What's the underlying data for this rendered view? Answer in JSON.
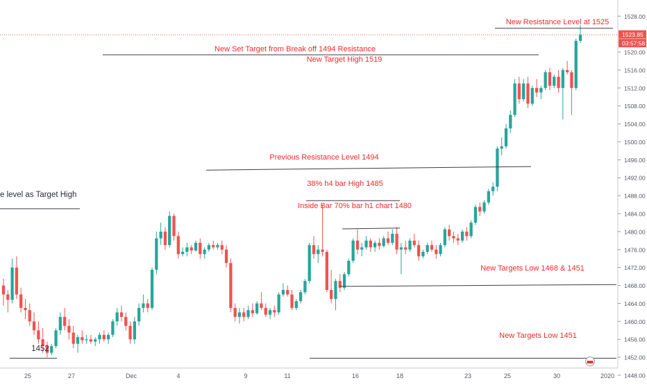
{
  "chart_data": {
    "type": "candlestick",
    "title": "",
    "up_color": "#26a69a",
    "down_color": "#ef5350",
    "annotation_color": "#ef2b2b",
    "y_ticks": [
      1448.0,
      1452.0,
      1456.0,
      1460.0,
      1464.0,
      1468.0,
      1472.0,
      1476.0,
      1480.0,
      1484.0,
      1488.0,
      1492.0,
      1496.0,
      1500.0,
      1504.0,
      1508.0,
      1512.0,
      1516.0,
      1520.0,
      1528.0
    ],
    "ylim": [
      1446.6,
      1531.6
    ],
    "x_ticks": [
      "25",
      "27",
      "Dec",
      "4",
      "9",
      "11",
      "16",
      "18",
      "23",
      "25",
      "30",
      "2020"
    ],
    "last_price": "1523.85",
    "countdown": "03:57:58",
    "last_price_value": 1523.85,
    "annotations": [
      {
        "text": "New Resistance Level at 1525",
        "kind": "label"
      },
      {
        "text": "New Set Target from Break off 1494 Resistance",
        "kind": "label"
      },
      {
        "text": "New Target High 1519",
        "kind": "label"
      },
      {
        "text": "Previous Resistance Level 1494",
        "kind": "label"
      },
      {
        "text": "38% h4 bar High 1485",
        "kind": "label"
      },
      {
        "text": "Inside Bar 70% bar h1 chart 1480",
        "kind": "label"
      },
      {
        "text": "New Targets Low 1468 & 1451",
        "kind": "label"
      },
      {
        "text": "New Targets Low 1451",
        "kind": "label"
      },
      {
        "text": "1452",
        "kind": "label"
      },
      {
        "text": "e level as Target High",
        "kind": "label"
      }
    ],
    "trend_lines": [
      {
        "name": "resistance-1525",
        "y1": 1525.3,
        "y2": 1525.3
      },
      {
        "name": "set-target-1519",
        "y1": 1519.4,
        "y2": 1519.4
      },
      {
        "name": "previous-resistance-1494",
        "y1": 1493.7,
        "y2": 1494.5
      },
      {
        "name": "h4-bar-high-1485",
        "y1": 1486.9,
        "y2": 1486.9
      },
      {
        "name": "inside-bar-1480",
        "y1": 1480.6,
        "y2": 1480.8
      },
      {
        "name": "targets-low-1468",
        "y1": 1467.8,
        "y2": 1468.2
      },
      {
        "name": "targets-low-1451",
        "y1": 1451.8,
        "y2": 1451.8
      },
      {
        "name": "low-1452",
        "y1": 1451.8,
        "y2": 1451.8
      },
      {
        "name": "target-high-left",
        "y1": 1485.1,
        "y2": 1485.1
      }
    ],
    "candles": [
      [
        1468.0,
        1469.5,
        1463.5,
        1466.0
      ],
      [
        1466.0,
        1467.0,
        1462.0,
        1464.8
      ],
      [
        1464.8,
        1474.0,
        1464.0,
        1472.0
      ],
      [
        1472.0,
        1474.5,
        1465.0,
        1466.0
      ],
      [
        1466.0,
        1467.5,
        1462.0,
        1463.0
      ],
      [
        1463.0,
        1465.0,
        1460.5,
        1462.5
      ],
      [
        1462.5,
        1464.0,
        1459.0,
        1460.0
      ],
      [
        1460.0,
        1462.0,
        1457.0,
        1458.0
      ],
      [
        1458.0,
        1460.0,
        1455.0,
        1456.0
      ],
      [
        1456.0,
        1458.5,
        1453.0,
        1454.5
      ],
      [
        1454.5,
        1455.5,
        1452.0,
        1453.0
      ],
      [
        1453.0,
        1455.0,
        1452.5,
        1454.5
      ],
      [
        1454.5,
        1458.5,
        1454.0,
        1458.0
      ],
      [
        1458.0,
        1462.0,
        1457.0,
        1461.0
      ],
      [
        1461.0,
        1463.0,
        1458.0,
        1459.0
      ],
      [
        1459.0,
        1460.5,
        1456.0,
        1457.5
      ],
      [
        1457.5,
        1459.0,
        1454.0,
        1455.0
      ],
      [
        1455.0,
        1457.0,
        1453.0,
        1456.5
      ],
      [
        1456.5,
        1458.0,
        1455.0,
        1455.8
      ],
      [
        1455.8,
        1457.0,
        1455.0,
        1456.0
      ],
      [
        1456.0,
        1457.0,
        1455.0,
        1455.5
      ],
      [
        1455.5,
        1456.5,
        1454.5,
        1456.0
      ],
      [
        1456.0,
        1457.5,
        1455.0,
        1457.0
      ],
      [
        1457.0,
        1458.0,
        1455.5,
        1456.0
      ],
      [
        1456.0,
        1457.5,
        1455.0,
        1457.0
      ],
      [
        1457.0,
        1460.5,
        1456.5,
        1460.0
      ],
      [
        1460.0,
        1463.0,
        1459.0,
        1462.0
      ],
      [
        1462.0,
        1463.5,
        1460.0,
        1461.0
      ],
      [
        1461.0,
        1462.0,
        1458.0,
        1459.0
      ],
      [
        1459.0,
        1460.0,
        1455.0,
        1456.0
      ],
      [
        1456.0,
        1461.0,
        1455.0,
        1460.0
      ],
      [
        1460.0,
        1464.0,
        1459.0,
        1463.0
      ],
      [
        1463.0,
        1466.0,
        1462.0,
        1464.0
      ],
      [
        1464.0,
        1465.0,
        1462.0,
        1463.0
      ],
      [
        1463.0,
        1472.0,
        1462.5,
        1471.5
      ],
      [
        1471.5,
        1480.0,
        1470.5,
        1478.5
      ],
      [
        1478.5,
        1482.0,
        1477.0,
        1480.0
      ],
      [
        1480.0,
        1481.0,
        1476.0,
        1477.0
      ],
      [
        1477.0,
        1484.5,
        1476.5,
        1483.5
      ],
      [
        1483.5,
        1484.0,
        1478.0,
        1479.0
      ],
      [
        1479.0,
        1480.0,
        1474.0,
        1475.0
      ],
      [
        1475.0,
        1476.5,
        1474.5,
        1475.5
      ],
      [
        1475.5,
        1477.5,
        1474.5,
        1476.5
      ],
      [
        1476.5,
        1477.0,
        1475.0,
        1475.8
      ],
      [
        1475.8,
        1478.0,
        1475.5,
        1477.5
      ],
      [
        1477.5,
        1478.5,
        1474.0,
        1475.0
      ],
      [
        1475.0,
        1476.5,
        1474.0,
        1476.0
      ],
      [
        1476.0,
        1477.5,
        1475.5,
        1477.0
      ],
      [
        1477.0,
        1478.0,
        1476.0,
        1476.5
      ],
      [
        1476.5,
        1477.5,
        1476.0,
        1477.0
      ],
      [
        1477.0,
        1478.0,
        1475.0,
        1476.0
      ],
      [
        1476.0,
        1477.0,
        1472.0,
        1473.0
      ],
      [
        1473.0,
        1474.0,
        1462.0,
        1463.0
      ],
      [
        1463.0,
        1464.0,
        1460.0,
        1461.0
      ],
      [
        1461.0,
        1463.0,
        1459.5,
        1462.0
      ],
      [
        1462.0,
        1463.0,
        1460.0,
        1461.0
      ],
      [
        1461.0,
        1463.5,
        1460.5,
        1462.5
      ],
      [
        1462.5,
        1464.0,
        1461.0,
        1461.8
      ],
      [
        1461.8,
        1464.5,
        1461.5,
        1464.0
      ],
      [
        1464.0,
        1466.5,
        1462.5,
        1463.0
      ],
      [
        1463.0,
        1464.0,
        1461.0,
        1461.5
      ],
      [
        1461.5,
        1463.0,
        1460.5,
        1462.5
      ],
      [
        1462.5,
        1463.5,
        1461.0,
        1462.0
      ],
      [
        1462.0,
        1466.5,
        1461.5,
        1466.0
      ],
      [
        1466.0,
        1468.5,
        1465.5,
        1467.0
      ],
      [
        1467.0,
        1468.0,
        1465.5,
        1466.0
      ],
      [
        1466.0,
        1467.0,
        1462.5,
        1463.0
      ],
      [
        1463.0,
        1465.0,
        1462.5,
        1464.5
      ],
      [
        1464.5,
        1467.0,
        1464.0,
        1466.5
      ],
      [
        1466.5,
        1469.5,
        1466.0,
        1469.0
      ],
      [
        1469.0,
        1477.5,
        1468.5,
        1477.0
      ],
      [
        1477.0,
        1479.0,
        1474.0,
        1475.0
      ],
      [
        1475.0,
        1477.0,
        1473.0,
        1476.0
      ],
      [
        1476.0,
        1486.0,
        1474.5,
        1475.5
      ],
      [
        1475.5,
        1476.0,
        1466.5,
        1467.0
      ],
      [
        1467.0,
        1471.5,
        1464.0,
        1465.0
      ],
      [
        1465.0,
        1469.5,
        1462.5,
        1469.0
      ],
      [
        1469.0,
        1470.5,
        1466.5,
        1467.5
      ],
      [
        1467.5,
        1471.0,
        1467.0,
        1470.5
      ],
      [
        1470.5,
        1474.0,
        1470.0,
        1473.5
      ],
      [
        1473.5,
        1478.5,
        1473.0,
        1478.0
      ],
      [
        1478.0,
        1480.5,
        1475.0,
        1476.0
      ],
      [
        1476.0,
        1477.5,
        1474.5,
        1476.5
      ],
      [
        1476.5,
        1479.0,
        1476.0,
        1478.0
      ],
      [
        1478.0,
        1478.5,
        1475.5,
        1476.5
      ],
      [
        1476.5,
        1478.0,
        1475.5,
        1477.5
      ],
      [
        1477.5,
        1478.5,
        1476.0,
        1476.8
      ],
      [
        1476.8,
        1479.0,
        1476.5,
        1478.5
      ],
      [
        1478.5,
        1480.0,
        1477.0,
        1477.5
      ],
      [
        1477.5,
        1480.5,
        1477.0,
        1479.5
      ],
      [
        1479.5,
        1481.0,
        1475.0,
        1476.0
      ],
      [
        1476.0,
        1477.5,
        1470.5,
        1476.5
      ],
      [
        1476.5,
        1478.0,
        1475.0,
        1476.0
      ],
      [
        1476.0,
        1478.5,
        1475.5,
        1478.0
      ],
      [
        1478.0,
        1479.5,
        1476.5,
        1477.0
      ],
      [
        1477.0,
        1478.0,
        1473.5,
        1474.5
      ],
      [
        1474.5,
        1476.0,
        1474.0,
        1475.5
      ],
      [
        1475.5,
        1477.5,
        1475.0,
        1477.0
      ],
      [
        1477.0,
        1478.0,
        1475.5,
        1476.0
      ],
      [
        1476.0,
        1477.0,
        1474.0,
        1475.0
      ],
      [
        1475.0,
        1477.5,
        1474.5,
        1477.0
      ],
      [
        1477.0,
        1481.0,
        1476.5,
        1480.5
      ],
      [
        1480.5,
        1481.5,
        1478.0,
        1479.0
      ],
      [
        1479.0,
        1480.0,
        1477.5,
        1478.5
      ],
      [
        1478.5,
        1479.5,
        1477.0,
        1478.0
      ],
      [
        1478.0,
        1480.5,
        1477.5,
        1480.0
      ],
      [
        1480.0,
        1481.0,
        1478.0,
        1479.0
      ],
      [
        1479.0,
        1482.5,
        1478.5,
        1482.0
      ],
      [
        1482.0,
        1486.0,
        1481.5,
        1485.5
      ],
      [
        1485.5,
        1486.5,
        1483.5,
        1484.5
      ],
      [
        1484.5,
        1487.0,
        1484.0,
        1486.5
      ],
      [
        1486.5,
        1489.5,
        1486.0,
        1489.0
      ],
      [
        1489.0,
        1491.0,
        1488.0,
        1490.0
      ],
      [
        1490.0,
        1499.0,
        1489.0,
        1498.5
      ],
      [
        1498.5,
        1501.0,
        1497.0,
        1499.0
      ],
      [
        1499.0,
        1504.0,
        1498.5,
        1503.0
      ],
      [
        1503.0,
        1507.0,
        1502.0,
        1506.0
      ],
      [
        1506.0,
        1514.0,
        1505.5,
        1513.0
      ],
      [
        1513.0,
        1514.5,
        1508.5,
        1509.5
      ],
      [
        1509.5,
        1514.0,
        1509.0,
        1513.0
      ],
      [
        1513.0,
        1514.5,
        1507.5,
        1508.5
      ],
      [
        1508.5,
        1512.5,
        1508.0,
        1512.0
      ],
      [
        1512.0,
        1514.0,
        1510.0,
        1511.0
      ],
      [
        1511.0,
        1512.5,
        1509.5,
        1512.0
      ],
      [
        1512.0,
        1516.0,
        1511.5,
        1515.5
      ],
      [
        1515.5,
        1516.5,
        1511.5,
        1512.5
      ],
      [
        1512.5,
        1515.0,
        1512.0,
        1514.5
      ],
      [
        1514.5,
        1516.0,
        1511.0,
        1512.0
      ],
      [
        1512.0,
        1516.5,
        1505.0,
        1516.0
      ],
      [
        1516.0,
        1518.0,
        1515.0,
        1515.5
      ],
      [
        1515.5,
        1516.0,
        1506.0,
        1512.0
      ],
      [
        1512.0,
        1523.0,
        1511.5,
        1522.5
      ],
      [
        1522.5,
        1526.0,
        1522.0,
        1523.85
      ]
    ]
  }
}
